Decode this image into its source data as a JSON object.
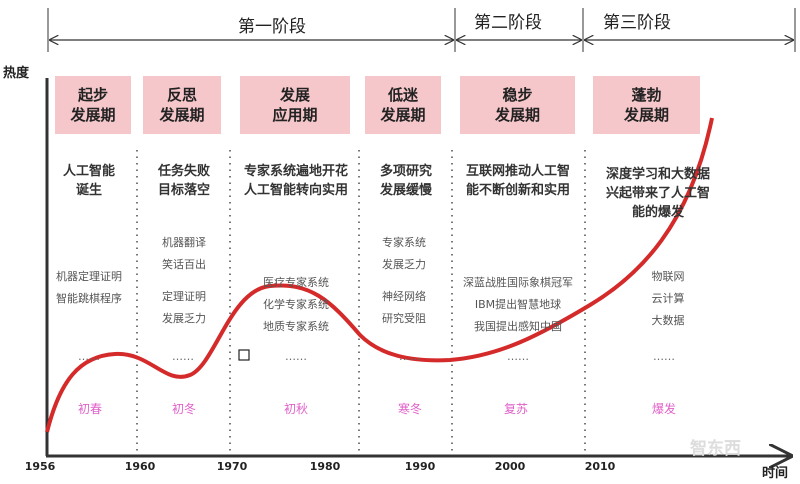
{
  "axis": {
    "y_label": "热度",
    "x_label": "时间",
    "ticks": [
      "1956",
      "1960",
      "1970",
      "1980",
      "1990",
      "2000",
      "2010"
    ]
  },
  "stages": [
    "第一阶段",
    "第二阶段",
    "第三阶段"
  ],
  "periods": [
    {
      "title1": "起步",
      "title2": "发展期",
      "main": [
        "人工智能",
        "诞生"
      ],
      "subs": [
        "机器定理证明",
        "智能跳棋程序"
      ],
      "dots": "……",
      "season": "初春"
    },
    {
      "title1": "反思",
      "title2": "发展期",
      "main": [
        "任务失败",
        "目标落空"
      ],
      "subs": [
        "机器翻译",
        "笑话百出",
        "定理证明",
        "发展乏力"
      ],
      "dots": "……",
      "season": "初冬"
    },
    {
      "title1": "发展",
      "title2": "应用期",
      "main": [
        "专家系统遍地开花",
        "人工智能转向实用"
      ],
      "subs": [
        "医疗专家系统",
        "化学专家系统",
        "地质专家系统"
      ],
      "dots": "……",
      "season": "初秋"
    },
    {
      "title1": "低迷",
      "title2": "发展期",
      "main": [
        "多项研究",
        "发展缓慢"
      ],
      "subs": [
        "专家系统",
        "发展乏力",
        "神经网络",
        "研究受阻"
      ],
      "dots": "……",
      "season": "寒冬"
    },
    {
      "title1": "稳步",
      "title2": "发展期",
      "main": [
        "互联网推动人工智",
        "能不断创新和实用"
      ],
      "subs": [
        "深蓝战胜国际象棋冠军",
        "IBM提出智慧地球",
        "我国提出感知中国"
      ],
      "dots": "……",
      "season": "复苏"
    },
    {
      "title1": "蓬勃",
      "title2": "发展期",
      "main": [
        "深度学习和大数据",
        "兴起带来了人工智",
        "能的爆发"
      ],
      "subs": [
        "物联网",
        "云计算",
        "大数据"
      ],
      "dots": "……",
      "season": "爆发"
    }
  ],
  "watermark": "智东西",
  "colors": {
    "box": "#f5c7ca",
    "curve": "#d42a2a",
    "season": "#e060c8"
  }
}
